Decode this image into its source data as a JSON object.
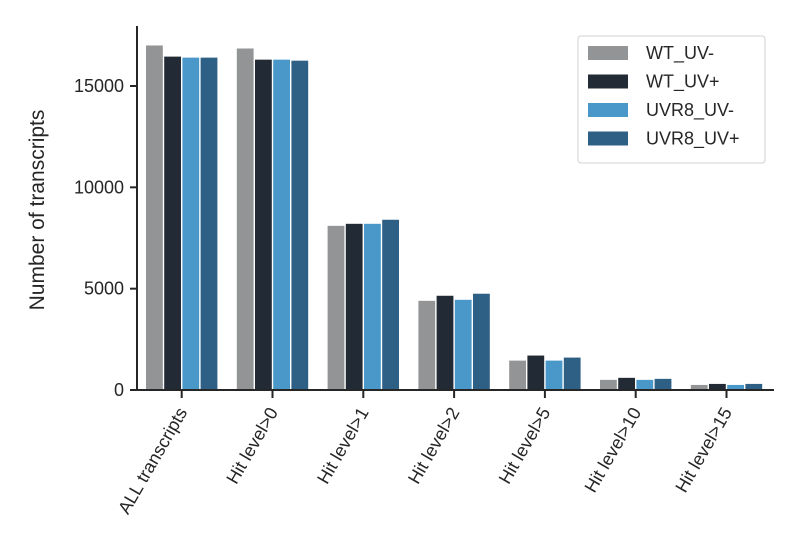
{
  "chart_data": {
    "type": "bar",
    "categories": [
      "ALL transcripts",
      "Hit level>0",
      "Hit level>1",
      "Hit level>2",
      "Hit level>5",
      "Hit level>10",
      "Hit level>15"
    ],
    "series": [
      {
        "name": "WT_UV-",
        "color": "#929496",
        "values": [
          17000,
          16850,
          8100,
          4400,
          1450,
          500,
          250
        ]
      },
      {
        "name": "WT_UV+",
        "color": "#222b35",
        "values": [
          16450,
          16300,
          8200,
          4650,
          1700,
          600,
          300
        ]
      },
      {
        "name": "UVR8_UV-",
        "color": "#4a98c9",
        "values": [
          16400,
          16300,
          8200,
          4450,
          1450,
          500,
          250
        ]
      },
      {
        "name": "UVR8_UV+",
        "color": "#2e5f85",
        "values": [
          16400,
          16250,
          8400,
          4750,
          1600,
          550,
          300
        ]
      }
    ],
    "ylabel": "Number of transcripts",
    "xlabel": "",
    "ylim": [
      0,
      18000
    ],
    "yticks": [
      0,
      5000,
      10000,
      15000
    ],
    "legend": "top-right",
    "grid": false
  }
}
